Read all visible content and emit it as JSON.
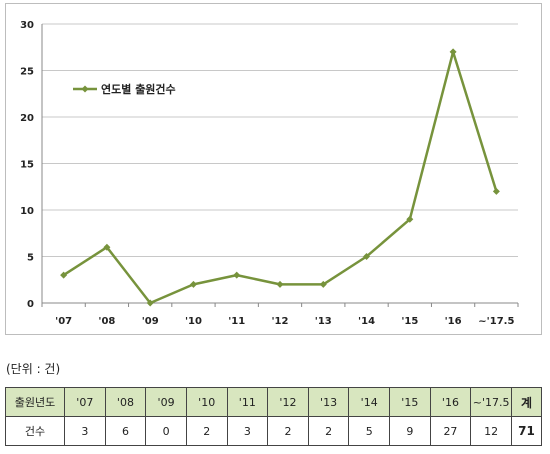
{
  "chart_data": {
    "type": "line",
    "categories": [
      "'07",
      "'08",
      "'09",
      "'10",
      "'11",
      "'12",
      "'13",
      "'14",
      "'15",
      "'16",
      "~'17.5"
    ],
    "series": [
      {
        "name": "연도별 출원건수",
        "values": [
          3,
          6,
          0,
          2,
          3,
          2,
          2,
          5,
          9,
          27,
          12
        ],
        "color": "#77933c"
      }
    ],
    "yticks": [
      0,
      5,
      10,
      15,
      20,
      25,
      30
    ],
    "ylim": [
      0,
      30
    ],
    "grid": true,
    "legend": "upper-left-inside"
  },
  "unit_note": "(단위 : 건)",
  "table": {
    "header_label": "출원년도",
    "columns": [
      "'07",
      "'08",
      "'09",
      "'10",
      "'11",
      "'12",
      "'13",
      "'14",
      "'15",
      "'16",
      "~'17.5"
    ],
    "total_label": "계",
    "row_label": "건수",
    "values": [
      "3",
      "6",
      "0",
      "2",
      "3",
      "2",
      "2",
      "5",
      "9",
      "27",
      "12"
    ],
    "total": "71"
  }
}
